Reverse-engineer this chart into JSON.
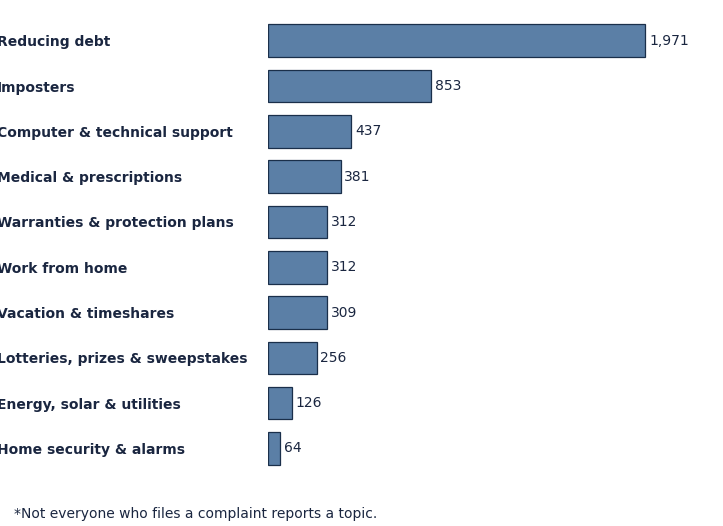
{
  "categories": [
    "Home security & alarms",
    "Energy, solar & utilities",
    "Lotteries, prizes & sweepstakes",
    "Vacation & timeshares",
    "Work from home",
    "Warranties & protection plans",
    "Medical & prescriptions",
    "Computer & technical support",
    "Imposters",
    "Reducing debt"
  ],
  "values": [
    64,
    126,
    256,
    309,
    312,
    312,
    381,
    437,
    853,
    1971
  ],
  "bar_color": "#5b7fa6",
  "bar_edgecolor": "#1a2f4a",
  "label_color": "#1a2640",
  "footnote": "*Not everyone who files a complaint reports a topic.",
  "xlim": [
    0,
    2150
  ],
  "figsize": [
    7.23,
    5.26
  ],
  "dpi": 100,
  "bar_height": 0.72,
  "label_fontsize": 10,
  "value_fontsize": 10,
  "footnote_fontsize": 10,
  "background_color": "#ffffff"
}
